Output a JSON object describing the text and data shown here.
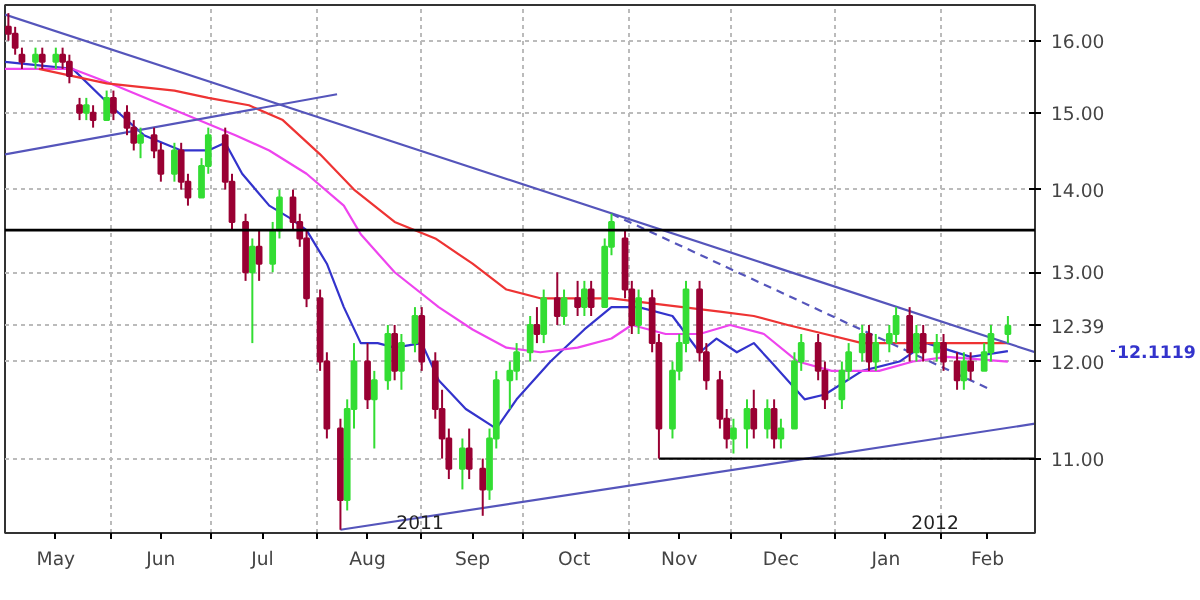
{
  "chart_data": {
    "type": "candlestick",
    "log": true,
    "grid": true,
    "xlim": [
      "2011-05-01",
      "2012-02-29"
    ],
    "xticks": [
      {
        "value": "2011-05-16",
        "label": "May"
      },
      {
        "value": "2011-06-01",
        "label": null
      },
      {
        "value": "2011-06-16",
        "label": "Jun"
      },
      {
        "value": "2011-07-01",
        "label": null
      },
      {
        "value": "2011-07-16",
        "label": "Jul"
      },
      {
        "value": "2011-08-01",
        "label": null
      },
      {
        "value": "2011-08-16",
        "label": "Aug"
      },
      {
        "value": "2011-09-01",
        "label": null
      },
      {
        "value": "2011-09-16",
        "label": "Sep"
      },
      {
        "value": "2011-10-01",
        "label": null
      },
      {
        "value": "2011-10-16",
        "label": "Oct"
      },
      {
        "value": "2011-11-01",
        "label": null
      },
      {
        "value": "2011-11-16",
        "label": "Nov"
      },
      {
        "value": "2011-12-01",
        "label": null
      },
      {
        "value": "2011-12-16",
        "label": "Dec"
      },
      {
        "value": "2012-01-01",
        "label": null
      },
      {
        "value": "2012-01-16",
        "label": "Jan"
      },
      {
        "value": "2012-02-01",
        "label": null
      },
      {
        "value": "2012-02-15",
        "label": "Feb"
      }
    ],
    "ylim": [
      10.29,
      16.52
    ],
    "yticks": [
      {
        "value": 11,
        "label": "11.00"
      },
      {
        "value": 12,
        "label": "12.00"
      },
      12.39,
      {
        "value": 13,
        "label": "13.00"
      },
      {
        "value": 14,
        "label": "14.00"
      },
      {
        "value": 15,
        "label": "15.00"
      },
      {
        "value": 16,
        "label": "16.00"
      }
    ],
    "x": [
      "2011-05-02",
      "2011-05-04",
      "2011-05-06",
      "2011-05-10",
      "2011-05-12",
      "2011-05-16",
      "2011-05-18",
      "2011-05-20",
      "2011-05-23",
      "2011-05-25",
      "2011-05-27",
      "2011-05-31",
      "2011-06-02",
      "2011-06-06",
      "2011-06-08",
      "2011-06-10",
      "2011-06-14",
      "2011-06-16",
      "2011-06-20",
      "2011-06-22",
      "2011-06-24",
      "2011-06-28",
      "2011-06-30",
      "2011-07-05",
      "2011-07-07",
      "2011-07-11",
      "2011-07-13",
      "2011-07-15",
      "2011-07-19",
      "2011-07-21",
      "2011-07-25",
      "2011-07-27",
      "2011-07-29",
      "2011-08-02",
      "2011-08-04",
      "2011-08-08",
      "2011-08-10",
      "2011-08-12",
      "2011-08-16",
      "2011-08-18",
      "2011-08-22",
      "2011-08-24",
      "2011-08-26",
      "2011-08-30",
      "2011-09-01",
      "2011-09-05",
      "2011-09-07",
      "2011-09-09",
      "2011-09-13",
      "2011-09-15",
      "2011-09-19",
      "2011-09-21",
      "2011-09-23",
      "2011-09-27",
      "2011-09-29",
      "2011-10-03",
      "2011-10-05",
      "2011-10-07",
      "2011-10-11",
      "2011-10-13",
      "2011-10-17",
      "2011-10-19",
      "2011-10-21",
      "2011-10-25",
      "2011-10-27",
      "2011-10-31",
      "2011-11-02",
      "2011-11-04",
      "2011-11-08",
      "2011-11-10",
      "2011-11-14",
      "2011-11-16",
      "2011-11-18",
      "2011-11-22",
      "2011-11-24",
      "2011-11-28",
      "2011-11-30",
      "2011-12-02",
      "2011-12-06",
      "2011-12-08",
      "2011-12-12",
      "2011-12-14",
      "2011-12-16",
      "2011-12-20",
      "2011-12-22",
      "2011-12-27",
      "2011-12-29",
      "2012-01-03",
      "2012-01-05",
      "2012-01-09",
      "2012-01-11",
      "2012-01-13",
      "2012-01-17",
      "2012-01-19",
      "2012-01-23",
      "2012-01-25",
      "2012-01-27",
      "2012-01-31",
      "2012-02-02",
      "2012-02-06",
      "2012-02-08",
      "2012-02-10",
      "2012-02-14",
      "2012-02-16",
      "2012-02-21"
    ],
    "ohlc": [
      [
        16.2,
        16.4,
        16.0,
        16.1
      ],
      [
        16.1,
        16.2,
        15.8,
        15.9
      ],
      [
        15.8,
        15.9,
        15.6,
        15.7
      ],
      [
        15.7,
        15.9,
        15.6,
        15.8
      ],
      [
        15.8,
        15.9,
        15.6,
        15.7
      ],
      [
        15.7,
        15.9,
        15.6,
        15.8
      ],
      [
        15.8,
        15.9,
        15.6,
        15.7
      ],
      [
        15.7,
        15.8,
        15.4,
        15.5
      ],
      [
        15.1,
        15.2,
        14.9,
        15.0
      ],
      [
        15.0,
        15.2,
        14.9,
        15.1
      ],
      [
        15.0,
        15.1,
        14.8,
        14.9
      ],
      [
        14.9,
        15.3,
        14.9,
        15.2
      ],
      [
        15.2,
        15.3,
        14.9,
        15.0
      ],
      [
        15.0,
        15.1,
        14.7,
        14.8
      ],
      [
        14.8,
        14.9,
        14.5,
        14.6
      ],
      [
        14.6,
        14.8,
        14.4,
        14.7
      ],
      [
        14.7,
        14.8,
        14.4,
        14.5
      ],
      [
        14.5,
        14.6,
        14.1,
        14.2
      ],
      [
        14.2,
        14.6,
        14.1,
        14.5
      ],
      [
        14.5,
        14.6,
        14.0,
        14.1
      ],
      [
        14.1,
        14.2,
        13.8,
        13.9
      ],
      [
        13.9,
        14.4,
        13.9,
        14.3
      ],
      [
        14.3,
        14.8,
        14.2,
        14.7
      ],
      [
        14.7,
        14.8,
        14.0,
        14.1
      ],
      [
        14.1,
        14.2,
        13.5,
        13.6
      ],
      [
        13.6,
        13.7,
        12.9,
        13.0
      ],
      [
        13.0,
        13.4,
        12.2,
        13.3
      ],
      [
        13.3,
        13.5,
        12.9,
        13.1
      ],
      [
        13.1,
        13.6,
        13.0,
        13.5
      ],
      [
        13.5,
        14.0,
        13.4,
        13.9
      ],
      [
        13.9,
        14.0,
        13.5,
        13.6
      ],
      [
        13.6,
        13.7,
        13.3,
        13.4
      ],
      [
        13.4,
        13.5,
        12.6,
        12.7
      ],
      [
        12.7,
        12.8,
        11.9,
        12.0
      ],
      [
        12.0,
        12.1,
        11.2,
        11.3
      ],
      [
        11.3,
        11.4,
        10.32,
        10.6
      ],
      [
        10.6,
        11.6,
        10.5,
        11.5
      ],
      [
        11.5,
        12.2,
        11.3,
        12.0
      ],
      [
        12.0,
        12.2,
        11.5,
        11.6
      ],
      [
        11.6,
        11.9,
        11.1,
        11.8
      ],
      [
        11.8,
        12.4,
        11.7,
        12.3
      ],
      [
        12.3,
        12.4,
        11.8,
        11.9
      ],
      [
        11.9,
        12.3,
        11.7,
        12.2
      ],
      [
        12.2,
        12.6,
        12.1,
        12.5
      ],
      [
        12.5,
        12.6,
        11.9,
        12.0
      ],
      [
        12.0,
        12.1,
        11.4,
        11.5
      ],
      [
        11.5,
        11.7,
        11.0,
        11.2
      ],
      [
        11.2,
        11.3,
        10.8,
        10.9
      ],
      [
        10.9,
        11.2,
        10.7,
        11.1
      ],
      [
        11.1,
        11.3,
        10.8,
        10.9
      ],
      [
        10.9,
        11.0,
        10.45,
        10.7
      ],
      [
        10.7,
        11.3,
        10.6,
        11.2
      ],
      [
        11.2,
        11.9,
        11.1,
        11.8
      ],
      [
        11.8,
        12.0,
        11.5,
        11.9
      ],
      [
        11.9,
        12.2,
        11.8,
        12.1
      ],
      [
        12.1,
        12.5,
        12.0,
        12.4
      ],
      [
        12.4,
        12.6,
        12.2,
        12.3
      ],
      [
        12.3,
        12.8,
        12.2,
        12.7
      ],
      [
        12.7,
        13.0,
        12.4,
        12.5
      ],
      [
        12.5,
        12.8,
        12.4,
        12.7
      ],
      [
        12.7,
        12.9,
        12.5,
        12.6
      ],
      [
        12.6,
        12.9,
        12.5,
        12.8
      ],
      [
        12.8,
        12.9,
        12.5,
        12.6
      ],
      [
        12.6,
        13.4,
        12.6,
        13.3
      ],
      [
        13.3,
        13.7,
        13.2,
        13.6
      ],
      [
        13.4,
        13.5,
        12.7,
        12.8
      ],
      [
        12.8,
        12.9,
        12.3,
        12.4
      ],
      [
        12.4,
        12.8,
        12.3,
        12.7
      ],
      [
        12.7,
        12.8,
        12.1,
        12.2
      ],
      [
        12.2,
        12.3,
        11.0,
        11.3
      ],
      [
        11.3,
        12.0,
        11.2,
        11.9
      ],
      [
        11.9,
        12.3,
        11.8,
        12.2
      ],
      [
        12.2,
        12.9,
        12.1,
        12.8
      ],
      [
        12.8,
        12.9,
        12.0,
        12.1
      ],
      [
        12.1,
        12.2,
        11.7,
        11.8
      ],
      [
        11.8,
        11.9,
        11.3,
        11.4
      ],
      [
        11.4,
        11.5,
        11.1,
        11.2
      ],
      [
        11.2,
        11.4,
        11.05,
        11.3
      ],
      [
        11.3,
        11.6,
        11.1,
        11.5
      ],
      [
        11.5,
        11.7,
        11.2,
        11.3
      ],
      [
        11.3,
        11.6,
        11.2,
        11.5
      ],
      [
        11.5,
        11.6,
        11.1,
        11.2
      ],
      [
        11.2,
        11.4,
        11.1,
        11.3
      ],
      [
        11.3,
        12.1,
        11.3,
        12.0
      ],
      [
        12.0,
        12.3,
        11.9,
        12.2
      ],
      [
        12.2,
        12.3,
        11.8,
        11.9
      ],
      [
        11.9,
        12.0,
        11.5,
        11.6
      ],
      [
        11.6,
        12.0,
        11.5,
        11.9
      ],
      [
        11.9,
        12.2,
        11.8,
        12.1
      ],
      [
        12.1,
        12.4,
        12.0,
        12.3
      ],
      [
        12.3,
        12.4,
        11.9,
        12.0
      ],
      [
        12.0,
        12.3,
        11.9,
        12.2
      ],
      [
        12.2,
        12.4,
        12.1,
        12.3
      ],
      [
        12.3,
        12.6,
        12.2,
        12.5
      ],
      [
        12.5,
        12.6,
        12.0,
        12.1
      ],
      [
        12.1,
        12.4,
        12.0,
        12.3
      ],
      [
        12.3,
        12.4,
        12.0,
        12.1
      ],
      [
        12.1,
        12.3,
        12.0,
        12.2
      ],
      [
        12.2,
        12.3,
        11.9,
        12.0
      ],
      [
        12.0,
        12.1,
        11.7,
        11.8
      ],
      [
        11.8,
        12.1,
        11.7,
        12.0
      ],
      [
        12.0,
        12.1,
        11.8,
        11.9
      ],
      [
        11.9,
        12.2,
        11.9,
        12.1
      ],
      [
        12.1,
        12.4,
        12.0,
        12.3
      ],
      [
        12.3,
        12.5,
        12.2,
        12.39
      ]
    ],
    "series": [
      {
        "type": "line",
        "color": "#3333cc",
        "x": [
          "2011-05-01",
          "2011-05-21",
          "2011-06-01",
          "2011-06-11",
          "2011-06-22",
          "2011-06-30",
          "2011-07-05",
          "2011-07-10",
          "2011-07-18",
          "2011-07-24",
          "2011-07-29",
          "2011-08-04",
          "2011-08-09",
          "2011-08-14",
          "2011-08-19",
          "2011-08-24",
          "2011-09-01",
          "2011-09-06",
          "2011-09-14",
          "2011-09-23",
          "2011-09-29",
          "2011-10-09",
          "2011-10-19",
          "2011-10-27",
          "2011-11-04",
          "2011-11-14",
          "2011-11-22",
          "2011-11-27",
          "2011-12-03",
          "2011-12-08",
          "2011-12-13",
          "2011-12-23",
          "2011-12-29",
          "2012-01-09",
          "2012-01-20",
          "2012-01-28",
          "2012-02-10",
          "2012-02-21"
        ],
        "values": [
          15.7,
          15.6,
          15.1,
          14.7,
          14.5,
          14.5,
          14.6,
          14.2,
          13.8,
          13.65,
          13.5,
          13.1,
          12.6,
          12.2,
          12.2,
          12.15,
          12.2,
          11.8,
          11.5,
          11.3,
          11.6,
          12.0,
          12.35,
          12.6,
          12.6,
          12.5,
          12.1,
          12.25,
          12.1,
          12.2,
          12.0,
          11.6,
          11.65,
          11.9,
          12.0,
          12.2,
          12.05,
          12.1119
        ]
      },
      {
        "type": "line",
        "color": "#ee44ee",
        "x": [
          "2011-05-01",
          "2011-05-21",
          "2011-06-01",
          "2011-06-22",
          "2011-07-08",
          "2011-07-18",
          "2011-07-29",
          "2011-08-09",
          "2011-08-14",
          "2011-08-24",
          "2011-09-06",
          "2011-09-16",
          "2011-09-26",
          "2011-10-06",
          "2011-10-17",
          "2011-10-27",
          "2011-11-02",
          "2011-11-12",
          "2011-11-22",
          "2011-12-01",
          "2011-12-11",
          "2011-12-21",
          "2011-12-31",
          "2012-01-14",
          "2012-01-24",
          "2012-02-03",
          "2012-02-21"
        ],
        "values": [
          15.6,
          15.6,
          15.4,
          15.0,
          14.7,
          14.5,
          14.2,
          13.8,
          13.45,
          13.0,
          12.6,
          12.35,
          12.15,
          12.1,
          12.15,
          12.25,
          12.4,
          12.3,
          12.3,
          12.4,
          12.3,
          12.0,
          11.9,
          11.9,
          12.0,
          12.05,
          12.0
        ]
      },
      {
        "type": "line",
        "color": "#ee3333",
        "x": [
          "2011-05-11",
          "2011-05-31",
          "2011-06-20",
          "2011-06-30",
          "2011-07-12",
          "2011-07-22",
          "2011-08-02",
          "2011-08-12",
          "2011-08-24",
          "2011-09-05",
          "2011-09-16",
          "2011-09-26",
          "2011-10-06",
          "2011-10-17",
          "2011-10-27",
          "2011-11-06",
          "2011-11-17",
          "2011-11-28",
          "2011-12-08",
          "2011-12-18",
          "2011-12-29",
          "2012-01-09",
          "2012-01-20",
          "2012-02-01",
          "2012-02-21"
        ],
        "values": [
          15.6,
          15.4,
          15.3,
          15.2,
          15.1,
          14.9,
          14.45,
          14.0,
          13.6,
          13.4,
          13.1,
          12.8,
          12.7,
          12.7,
          12.7,
          12.65,
          12.6,
          12.55,
          12.5,
          12.4,
          12.3,
          12.2,
          12.2,
          12.2,
          12.2
        ]
      },
      {
        "type": "line",
        "color": "#5555bb",
        "x": [
          "2011-05-01",
          "2012-02-29"
        ],
        "values": [
          16.38,
          12.1
        ]
      },
      {
        "type": "line",
        "color": "#5555bb",
        "x": [
          "2011-05-01",
          "2011-08-07"
        ],
        "values": [
          14.45,
          15.25
        ]
      },
      {
        "type": "line",
        "color": "#5555bb",
        "x": [
          "2011-08-08",
          "2012-02-29"
        ],
        "values": [
          10.32,
          11.35
        ]
      },
      {
        "type": "line",
        "color": "#5555bb",
        "line_style": "dashed",
        "x": [
          "2011-10-27",
          "2012-02-16"
        ],
        "values": [
          13.7,
          11.7
        ]
      },
      {
        "type": "line",
        "color": "#000000",
        "x": [
          "2011-11-10",
          "2012-02-29"
        ],
        "values": [
          11.0,
          11.0
        ]
      }
    ],
    "ref_lines": [
      {
        "axis": "y",
        "value": 13.5,
        "color": "#000000"
      }
    ],
    "annotations": [
      "2011",
      "2012",
      "12.1119"
    ]
  }
}
